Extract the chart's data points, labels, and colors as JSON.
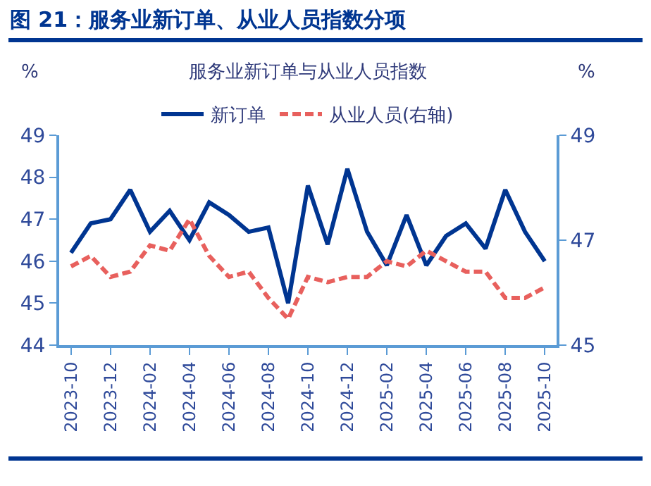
{
  "chart_data": {
    "type": "line",
    "title": "图 21：服务业新订单、从业人员指数分项",
    "subtitle": "服务业新订单与从业人员指数",
    "ylabel": "%",
    "y2label": "%",
    "categories": [
      "2023-10",
      null,
      "2023-12",
      null,
      "2024-02",
      null,
      "2024-04",
      null,
      "2024-06",
      null,
      "2024-08",
      null,
      "2024-10",
      null,
      "2024-12",
      null,
      "2025-02",
      null,
      "2025-04",
      null,
      "2025-06",
      null,
      "2025-08",
      null,
      "2025-10"
    ],
    "series": [
      {
        "name": "新订单",
        "color": "#003591",
        "line_style": "solid",
        "values": [
          46.2,
          46.9,
          47.0,
          47.7,
          46.7,
          47.2,
          46.5,
          47.4,
          47.1,
          46.7,
          46.8,
          45.0,
          47.8,
          46.4,
          48.2,
          46.7,
          45.9,
          47.1,
          45.9,
          46.6,
          46.9,
          46.3,
          47.7,
          46.7,
          46.0
        ]
      },
      {
        "name": "从业人员(右轴)",
        "color": "#e8605d",
        "line_style": "dashed",
        "axis": "y2",
        "values": [
          46.5,
          46.7,
          46.3,
          46.4,
          46.9,
          46.8,
          47.4,
          46.7,
          46.3,
          46.4,
          45.9,
          45.5,
          46.3,
          46.2,
          46.3,
          46.3,
          46.6,
          46.5,
          46.8,
          46.6,
          46.4,
          46.4,
          45.9,
          45.9,
          46.1
        ]
      }
    ],
    "ylim": [
      44,
      49
    ],
    "yticks": [
      44,
      45,
      46,
      47,
      48,
      49
    ],
    "y2lim": [
      45,
      49
    ],
    "y2ticks": [
      45,
      47,
      49
    ],
    "grid": false,
    "legend": "top",
    "marker": "none"
  }
}
